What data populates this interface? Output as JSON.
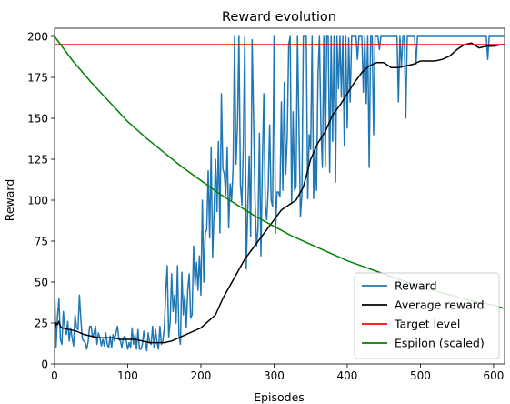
{
  "chart_data": {
    "type": "line",
    "title": "Reward evolution",
    "xlabel": "Episodes",
    "ylabel": "Reward",
    "xlim": [
      0,
      615
    ],
    "ylim": [
      0,
      205
    ],
    "xticks": [
      0,
      100,
      200,
      300,
      400,
      500,
      600
    ],
    "yticks": [
      0,
      25,
      50,
      75,
      100,
      125,
      150,
      175,
      200
    ],
    "grid": false,
    "legend_position": "bottom-right",
    "series": [
      {
        "name": "Reward",
        "color": "#1f77b4",
        "x": [
          0,
          2,
          4,
          6,
          8,
          10,
          12,
          14,
          16,
          18,
          20,
          22,
          24,
          26,
          28,
          30,
          32,
          34,
          36,
          38,
          40,
          42,
          44,
          46,
          48,
          50,
          52,
          54,
          56,
          58,
          60,
          62,
          64,
          66,
          68,
          70,
          72,
          74,
          76,
          78,
          80,
          82,
          84,
          86,
          88,
          90,
          92,
          94,
          96,
          98,
          100,
          102,
          104,
          106,
          108,
          110,
          112,
          114,
          116,
          118,
          120,
          122,
          124,
          126,
          128,
          130,
          132,
          134,
          136,
          138,
          140,
          142,
          144,
          146,
          148,
          150,
          152,
          154,
          156,
          158,
          160,
          162,
          164,
          166,
          168,
          170,
          172,
          174,
          176,
          178,
          180,
          182,
          184,
          186,
          188,
          190,
          192,
          194,
          196,
          198,
          200,
          202,
          204,
          206,
          208,
          210,
          212,
          214,
          216,
          218,
          220,
          222,
          224,
          226,
          228,
          230,
          232,
          234,
          236,
          238,
          240,
          242,
          244,
          246,
          248,
          250,
          252,
          254,
          256,
          258,
          260,
          262,
          264,
          266,
          268,
          270,
          272,
          274,
          276,
          278,
          280,
          282,
          284,
          286,
          288,
          290,
          292,
          294,
          296,
          298,
          300,
          302,
          304,
          306,
          308,
          310,
          312,
          314,
          316,
          318,
          320,
          322,
          324,
          326,
          328,
          330,
          332,
          334,
          336,
          338,
          340,
          342,
          344,
          346,
          348,
          350,
          352,
          354,
          356,
          358,
          360,
          362,
          364,
          366,
          368,
          370,
          372,
          374,
          376,
          378,
          380,
          382,
          384,
          386,
          388,
          390,
          392,
          394,
          396,
          398,
          400,
          402,
          404,
          406,
          408,
          410,
          412,
          414,
          416,
          418,
          420,
          422,
          424,
          426,
          428,
          430,
          432,
          434,
          436,
          438,
          440,
          442,
          444,
          446,
          448,
          450,
          452,
          454,
          456,
          458,
          460,
          462,
          464,
          466,
          468,
          470,
          472,
          474,
          476,
          478,
          480,
          482,
          484,
          486,
          488,
          490,
          492,
          494,
          496,
          498,
          500,
          502,
          504,
          506,
          508,
          510,
          512,
          514,
          516,
          518,
          520,
          522,
          524,
          526,
          528,
          530,
          532,
          534,
          536,
          538,
          540,
          542,
          544,
          546,
          548,
          550,
          552,
          554,
          556,
          558,
          560,
          562,
          564,
          566,
          568,
          570,
          572,
          574,
          576,
          578,
          580,
          582,
          584,
          586,
          588,
          590,
          592,
          594,
          596,
          598,
          600,
          602,
          604,
          606,
          608,
          610,
          612,
          614
        ],
        "y": [
          47,
          10,
          29,
          40,
          15,
          12,
          32,
          22,
          18,
          26,
          14,
          22,
          16,
          11,
          30,
          22,
          21,
          42,
          27,
          15,
          14,
          13,
          9,
          14,
          23,
          23,
          16,
          19,
          23,
          12,
          19,
          16,
          11,
          15,
          11,
          19,
          12,
          10,
          17,
          10,
          18,
          14,
          19,
          23,
          15,
          14,
          10,
          16,
          17,
          14,
          9,
          13,
          10,
          22,
          12,
          18,
          9,
          21,
          9,
          9,
          12,
          20,
          14,
          8,
          19,
          13,
          12,
          23,
          10,
          21,
          13,
          9,
          23,
          12,
          14,
          22,
          44,
          60,
          16,
          26,
          55,
          32,
          42,
          25,
          60,
          18,
          12,
          56,
          30,
          42,
          22,
          45,
          55,
          28,
          30,
          72,
          48,
          62,
          45,
          66,
          42,
          100,
          50,
          80,
          82,
          118,
          77,
          132,
          65,
          93,
          125,
          93,
          136,
          80,
          165,
          119,
          116,
          103,
          132,
          83,
          110,
          100,
          120,
          200,
          122,
          145,
          200,
          110,
          97,
          133,
          200,
          58,
          94,
          127,
          78,
          198,
          150,
          100,
          72,
          82,
          141,
          66,
          122,
          165,
          97,
          88,
          107,
          146,
          100,
          96,
          200,
          80,
          105,
          105,
          102,
          160,
          106,
          172,
          116,
          139,
          195,
          200,
          98,
          154,
          106,
          108,
          200,
          146,
          90,
          103,
          200,
          200,
          200,
          101,
          140,
          131,
          200,
          101,
          132,
          106,
          176,
          200,
          144,
          120,
          200,
          121,
          200,
          200,
          117,
          200,
          136,
          200,
          111,
          200,
          168,
          200,
          163,
          200,
          133,
          200,
          144,
          199,
          160,
          200,
          200,
          200,
          200,
          186,
          200,
          200,
          200,
          166,
          200,
          159,
          200,
          120,
          200,
          200,
          140,
          200,
          200,
          200,
          192,
          200,
          200,
          200,
          200,
          200,
          200,
          200,
          200,
          200,
          200,
          200,
          200,
          160,
          200,
          181,
          200,
          200,
          150,
          200,
          200,
          200,
          200,
          200,
          200,
          183,
          200,
          200,
          200,
          200,
          200,
          200,
          200,
          200,
          200,
          200,
          200,
          200,
          200,
          200,
          200,
          200,
          200,
          200,
          200,
          200,
          200,
          200,
          200,
          200,
          200,
          200,
          200,
          200,
          200,
          200,
          200,
          200,
          200,
          200,
          200,
          200,
          200,
          200,
          200,
          200,
          200,
          200,
          200,
          200,
          200,
          200,
          200,
          200,
          186,
          200,
          200,
          200,
          200,
          200,
          200,
          200,
          200,
          200,
          200,
          200
        ]
      },
      {
        "name": "Average reward",
        "color": "#000000",
        "x": [
          0,
          2,
          4,
          6,
          8,
          10,
          20,
          30,
          40,
          50,
          60,
          70,
          80,
          90,
          100,
          110,
          120,
          130,
          140,
          150,
          160,
          170,
          180,
          190,
          200,
          210,
          220,
          230,
          240,
          250,
          260,
          270,
          280,
          290,
          300,
          310,
          320,
          330,
          340,
          350,
          360,
          370,
          380,
          390,
          400,
          410,
          420,
          430,
          440,
          450,
          460,
          470,
          480,
          490,
          500,
          510,
          520,
          530,
          540,
          550,
          560,
          570,
          580,
          590,
          600,
          610,
          614
        ],
        "y": [
          20,
          25,
          24,
          26,
          23,
          22,
          21,
          20,
          18,
          17,
          16,
          16,
          16,
          15,
          15,
          15,
          14,
          13,
          13,
          13,
          14,
          16,
          18,
          20,
          22,
          26,
          30,
          40,
          48,
          56,
          64,
          70,
          76,
          82,
          88,
          94,
          97,
          100,
          108,
          125,
          135,
          142,
          152,
          158,
          165,
          172,
          178,
          182,
          184,
          184,
          181,
          181,
          182,
          183,
          185,
          185,
          185,
          186,
          188,
          192,
          195,
          196,
          193,
          194,
          194,
          195,
          195
        ]
      },
      {
        "name": "Target level",
        "color": "#ff0000",
        "x": [
          0,
          615
        ],
        "y": [
          195,
          195
        ]
      },
      {
        "name": "Espilon (scaled)",
        "color": "#008000",
        "x": [
          0,
          25,
          50,
          75,
          100,
          125,
          150,
          175,
          200,
          225,
          250,
          275,
          300,
          325,
          350,
          375,
          400,
          425,
          450,
          475,
          500,
          525,
          550,
          575,
          600,
          614
        ],
        "y": [
          200,
          185,
          172,
          160,
          148,
          138,
          129,
          120,
          112,
          104,
          97,
          90,
          84,
          78,
          73,
          68,
          63,
          59,
          55,
          51,
          47,
          44,
          41,
          38,
          36,
          34
        ]
      }
    ]
  }
}
